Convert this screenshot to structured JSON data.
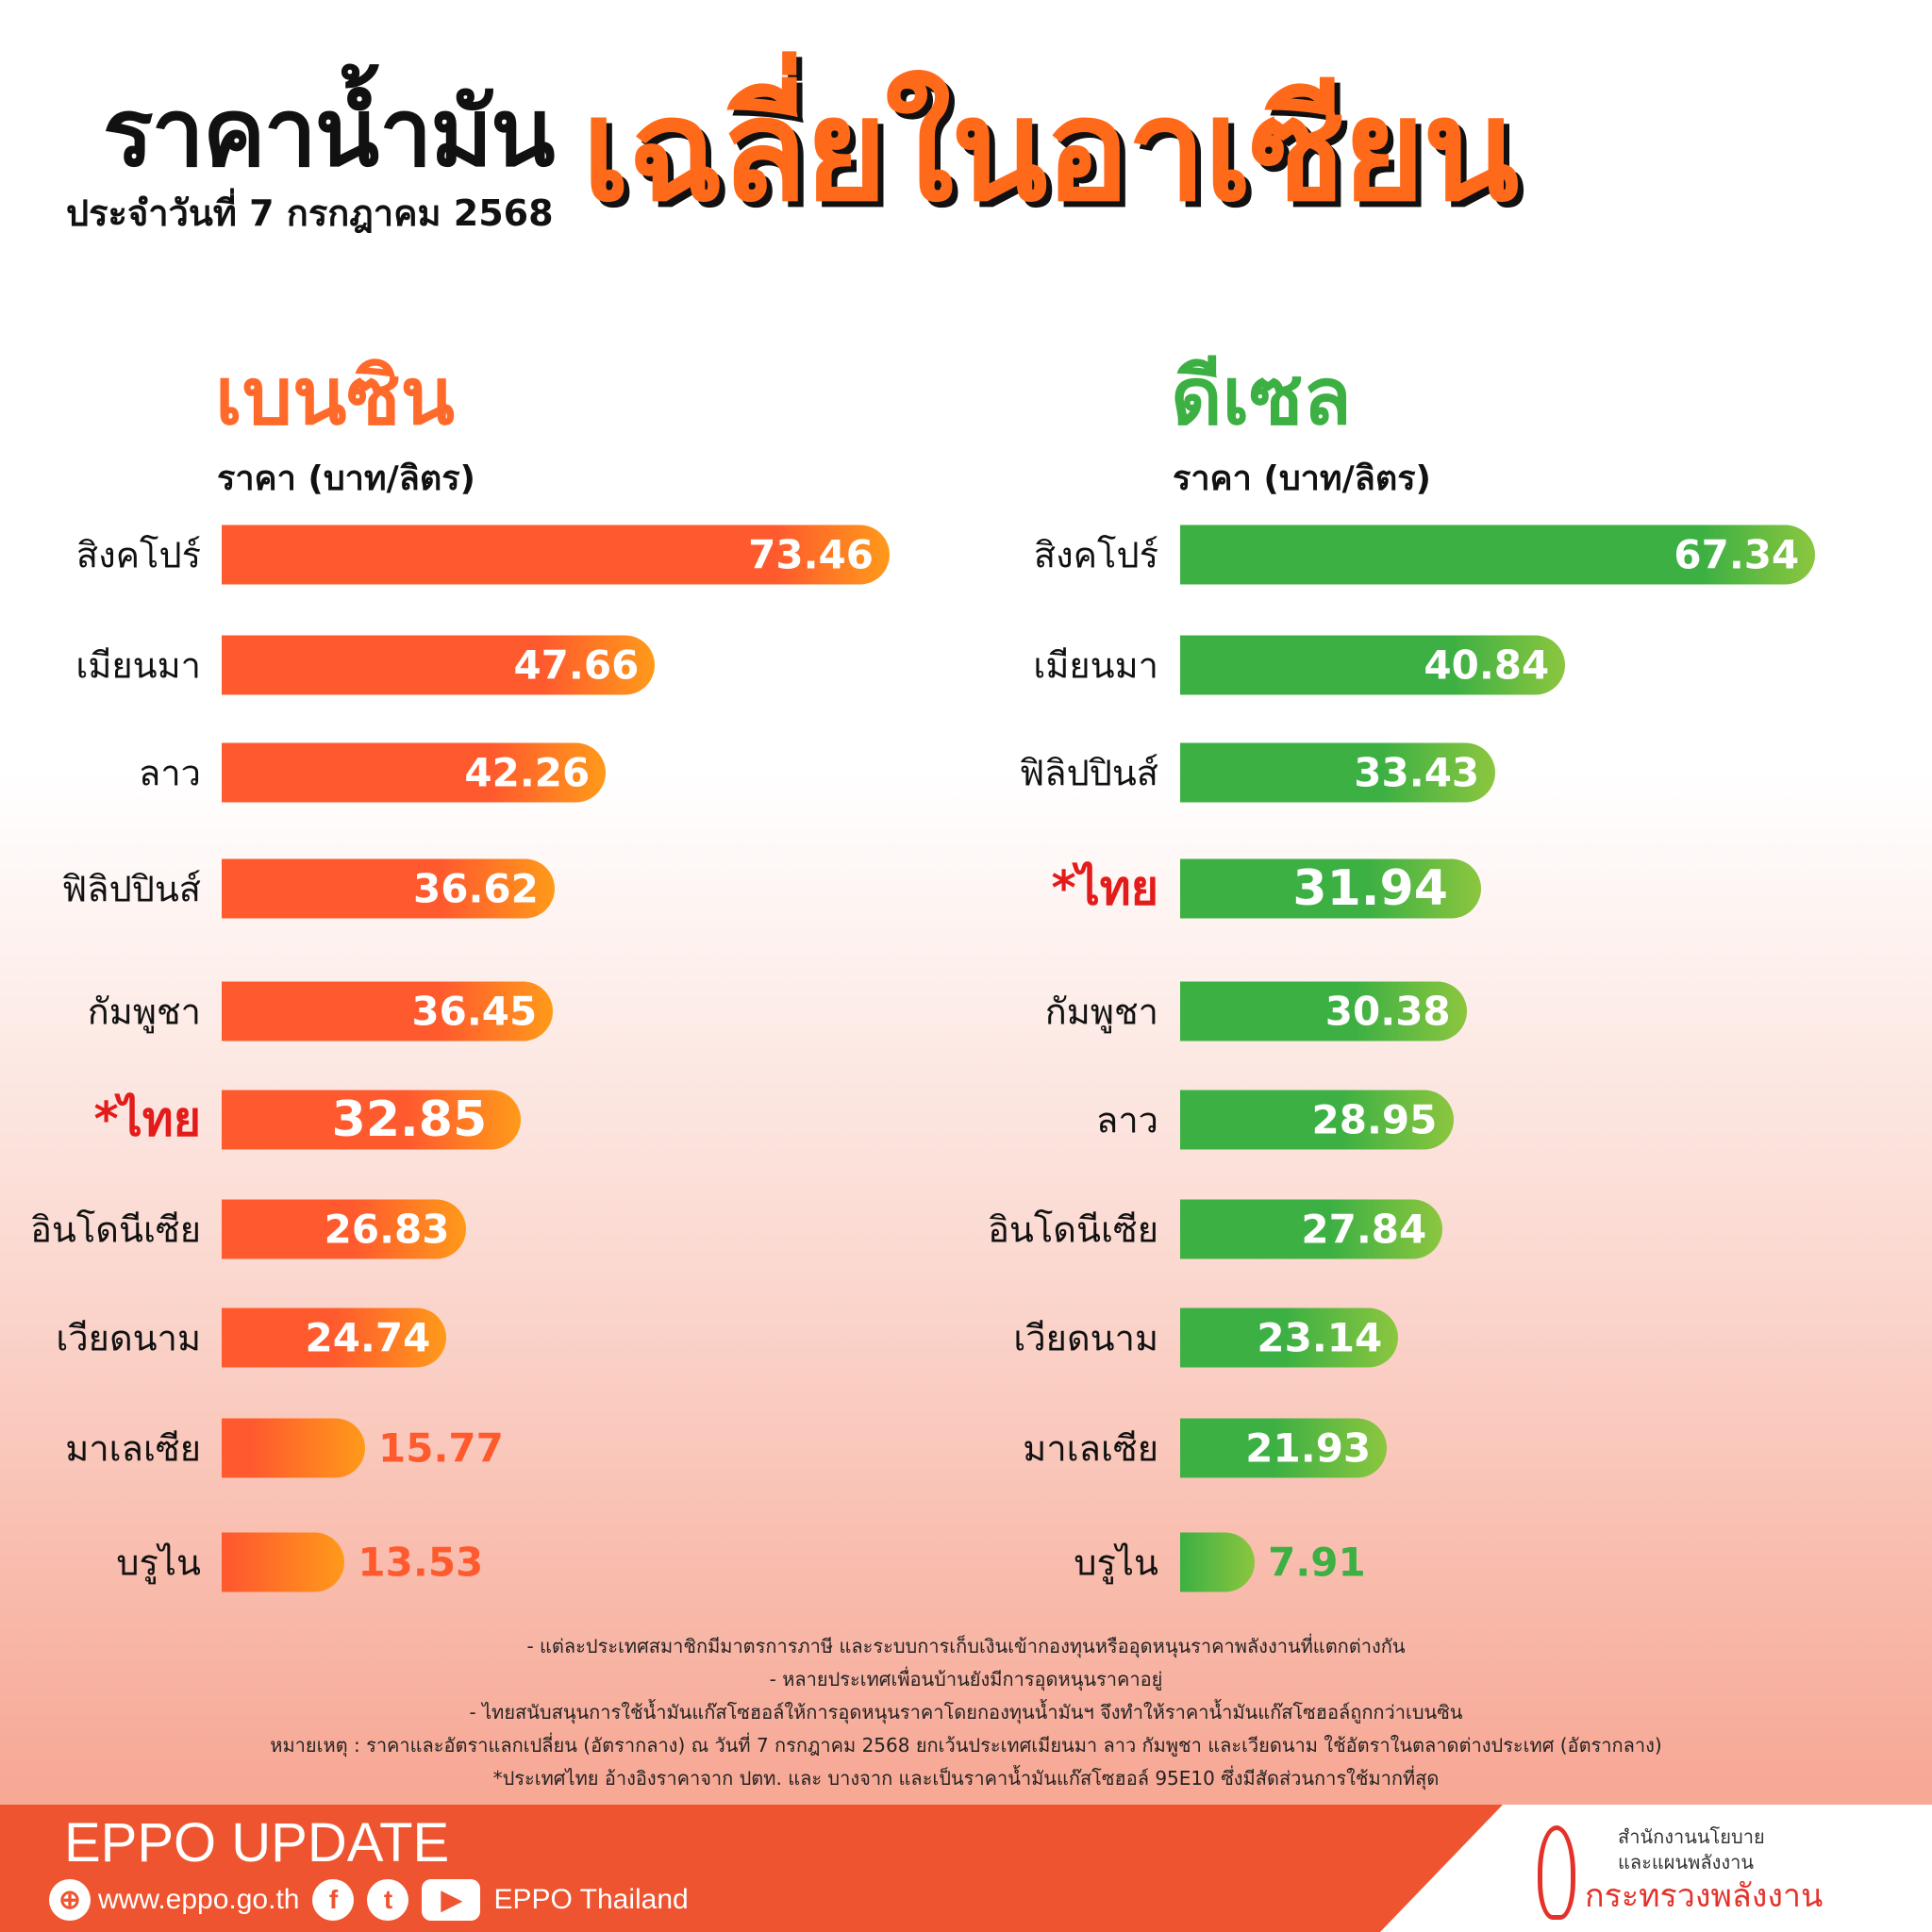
{
  "header": {
    "title_part1": "ราคาน้ำมัน",
    "subtitle": "ประจำวันที่  7 กรกฎาคม 2568",
    "title_part2": "เฉลี่ยในอาเซียน"
  },
  "colors": {
    "benzin": "#ff5a2e",
    "benzin_end": "#ff9a1a",
    "diesel": "#3cb043",
    "diesel_end": "#8cc63f",
    "thai_label": "#e31b1b"
  },
  "chart_data": [
    {
      "type": "bar",
      "orientation": "horizontal",
      "title": "เบนซิน",
      "ylabel": "ราคา (บาท/ลิตร)",
      "categories": [
        "สิงคโปร์",
        "เมียนมา",
        "ลาว",
        "ฟิลิปปินส์",
        "กัมพูชา",
        "ไทย",
        "อินโดนีเซีย",
        "เวียดนาม",
        "มาเลเซีย",
        "บรูไน"
      ],
      "values": [
        73.46,
        47.66,
        42.26,
        36.62,
        36.45,
        32.85,
        26.83,
        24.74,
        15.77,
        13.53
      ],
      "labels": [
        "73.46",
        "47.66",
        "42.26",
        "36.62",
        "36.45",
        "32.85",
        "26.83",
        "24.74",
        "15.77",
        "13.53"
      ],
      "highlight": "ไทย"
    },
    {
      "type": "bar",
      "orientation": "horizontal",
      "title": "ดีเซล",
      "ylabel": "ราคา (บาท/ลิตร)",
      "categories": [
        "สิงคโปร์",
        "เมียนมา",
        "ฟิลิปปินส์",
        "ไทย",
        "กัมพูชา",
        "ลาว",
        "อินโดนีเซีย",
        "เวียดนาม",
        "มาเลเซีย",
        "บรูไน"
      ],
      "values": [
        67.34,
        40.84,
        33.43,
        31.94,
        30.38,
        28.95,
        27.84,
        23.14,
        21.93,
        7.91
      ],
      "labels": [
        "67.34",
        "40.84",
        "33.43",
        "31.94",
        "30.38",
        "28.95",
        "27.84",
        "23.14",
        "21.93",
        "7.91"
      ],
      "highlight": "ไทย"
    }
  ],
  "notes": [
    "- แต่ละประเทศสมาชิกมีมาตรการภาษี และระบบการเก็บเงินเข้ากองทุนหรืออุดหนุนราคาพลังงานที่แตกต่างกัน",
    "- หลายประเทศเพื่อนบ้านยังมีการอุดหนุนราคาอยู่",
    "- ไทยสนับสนุนการใช้น้ำมันแก๊สโซฮอล์ให้การอุดหนุนราคาโดยกองทุนน้ำมันฯ จึงทำให้ราคาน้ำมันแก๊สโซฮอล์ถูกกว่าเบนซิน",
    "หมายเหตุ :   ราคาและอัตราแลกเปลี่ยน (อัตรากลาง) ณ วันที่ 7 กรกฎาคม 2568 ยกเว้นประเทศเมียนมา ลาว กัมพูชา และเวียดนาม ใช้อัตราในตลาดต่างประเทศ (อัตรากลาง)",
    "*ประเทศไทย อ้างอิงราคาจาก ปตท. และ บางจาก และเป็นราคาน้ำมันแก๊สโซฮอล์ 95E10 ซึ่งมีสัดส่วนการใช้มากที่สุด"
  ],
  "footer": {
    "brand": "EPPO UPDATE",
    "website": "www.eppo.go.th",
    "social": "EPPO Thailand",
    "org_line1": "สำนักงานนโยบาย",
    "org_line2": "และแผนพลังงาน",
    "ministry": "กระทรวงพลังงาน",
    "asterisk": "*"
  }
}
